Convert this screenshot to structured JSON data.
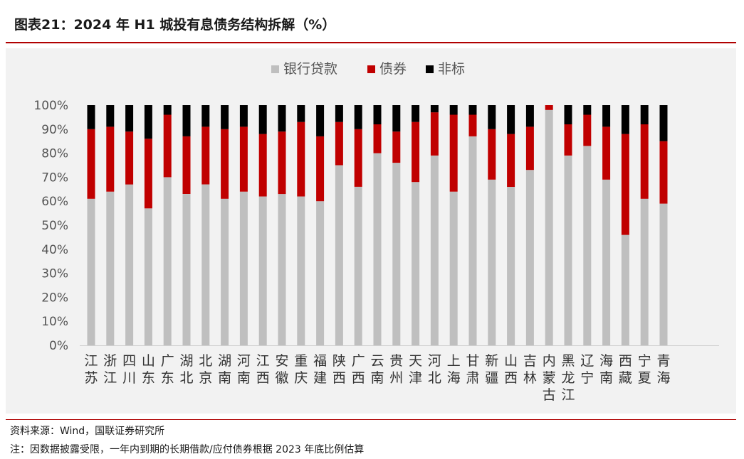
{
  "title": "图表21：2024 年 H1 城投有息债务结构拆解（%）",
  "source": "资料来源：Wind，国联证券研究所",
  "note": "注：因数据披露受限，一年内到期的长期借款/应付债券根据 2023 年底比例估算",
  "colors": {
    "bank_loans": "#bfbfbf",
    "bonds": "#c00000",
    "non_standard": "#000000",
    "accent": "#b00000"
  },
  "chart_data": {
    "type": "bar",
    "stacked": true,
    "categories": [
      [
        "江",
        "苏"
      ],
      [
        "浙",
        "江"
      ],
      [
        "四",
        "川"
      ],
      [
        "山",
        "东"
      ],
      [
        "广",
        "东"
      ],
      [
        "湖",
        "北"
      ],
      [
        "北",
        "京"
      ],
      [
        "湖",
        "南"
      ],
      [
        "河",
        "南"
      ],
      [
        "江",
        "西"
      ],
      [
        "安",
        "徽"
      ],
      [
        "重",
        "庆"
      ],
      [
        "福",
        "建"
      ],
      [
        "陕",
        "西"
      ],
      [
        "广",
        "西"
      ],
      [
        "云",
        "南"
      ],
      [
        "贵",
        "州"
      ],
      [
        "天",
        "津"
      ],
      [
        "河",
        "北"
      ],
      [
        "上",
        "海"
      ],
      [
        "甘",
        "肃"
      ],
      [
        "新",
        "疆"
      ],
      [
        "山",
        "西"
      ],
      [
        "吉",
        "林"
      ],
      [
        "内",
        "蒙",
        "古"
      ],
      [
        "黑",
        "龙",
        "江"
      ],
      [
        "辽",
        "宁"
      ],
      [
        "海",
        "南"
      ],
      [
        "西",
        "藏"
      ],
      [
        "宁",
        "夏"
      ],
      [
        "青",
        "海"
      ]
    ],
    "series": [
      {
        "name": "银行贷款",
        "values": [
          61,
          64,
          67,
          57,
          70,
          63,
          67,
          61,
          64,
          62,
          63,
          62,
          60,
          75,
          66,
          80,
          76,
          68,
          79,
          64,
          87,
          69,
          66,
          73,
          98,
          79,
          83,
          69,
          46,
          61,
          59
        ]
      },
      {
        "name": "债券",
        "values": [
          29,
          27,
          22,
          29,
          26,
          24,
          24,
          29,
          27,
          26,
          26,
          31,
          27,
          18,
          24,
          12,
          13,
          25,
          18,
          32,
          9,
          21,
          22,
          18,
          2,
          13,
          13,
          22,
          42,
          31,
          26
        ]
      },
      {
        "name": "非标",
        "values": [
          10,
          9,
          11,
          14,
          4,
          13,
          9,
          10,
          9,
          12,
          11,
          7,
          13,
          7,
          10,
          8,
          11,
          7,
          3,
          4,
          4,
          10,
          12,
          9,
          0,
          8,
          4,
          9,
          12,
          8,
          15
        ]
      }
    ],
    "y_ticks": [
      "0%",
      "10%",
      "20%",
      "30%",
      "40%",
      "50%",
      "60%",
      "70%",
      "80%",
      "90%",
      "100%"
    ],
    "ylim": [
      0,
      100
    ],
    "grid": false,
    "legend_position": "top"
  }
}
